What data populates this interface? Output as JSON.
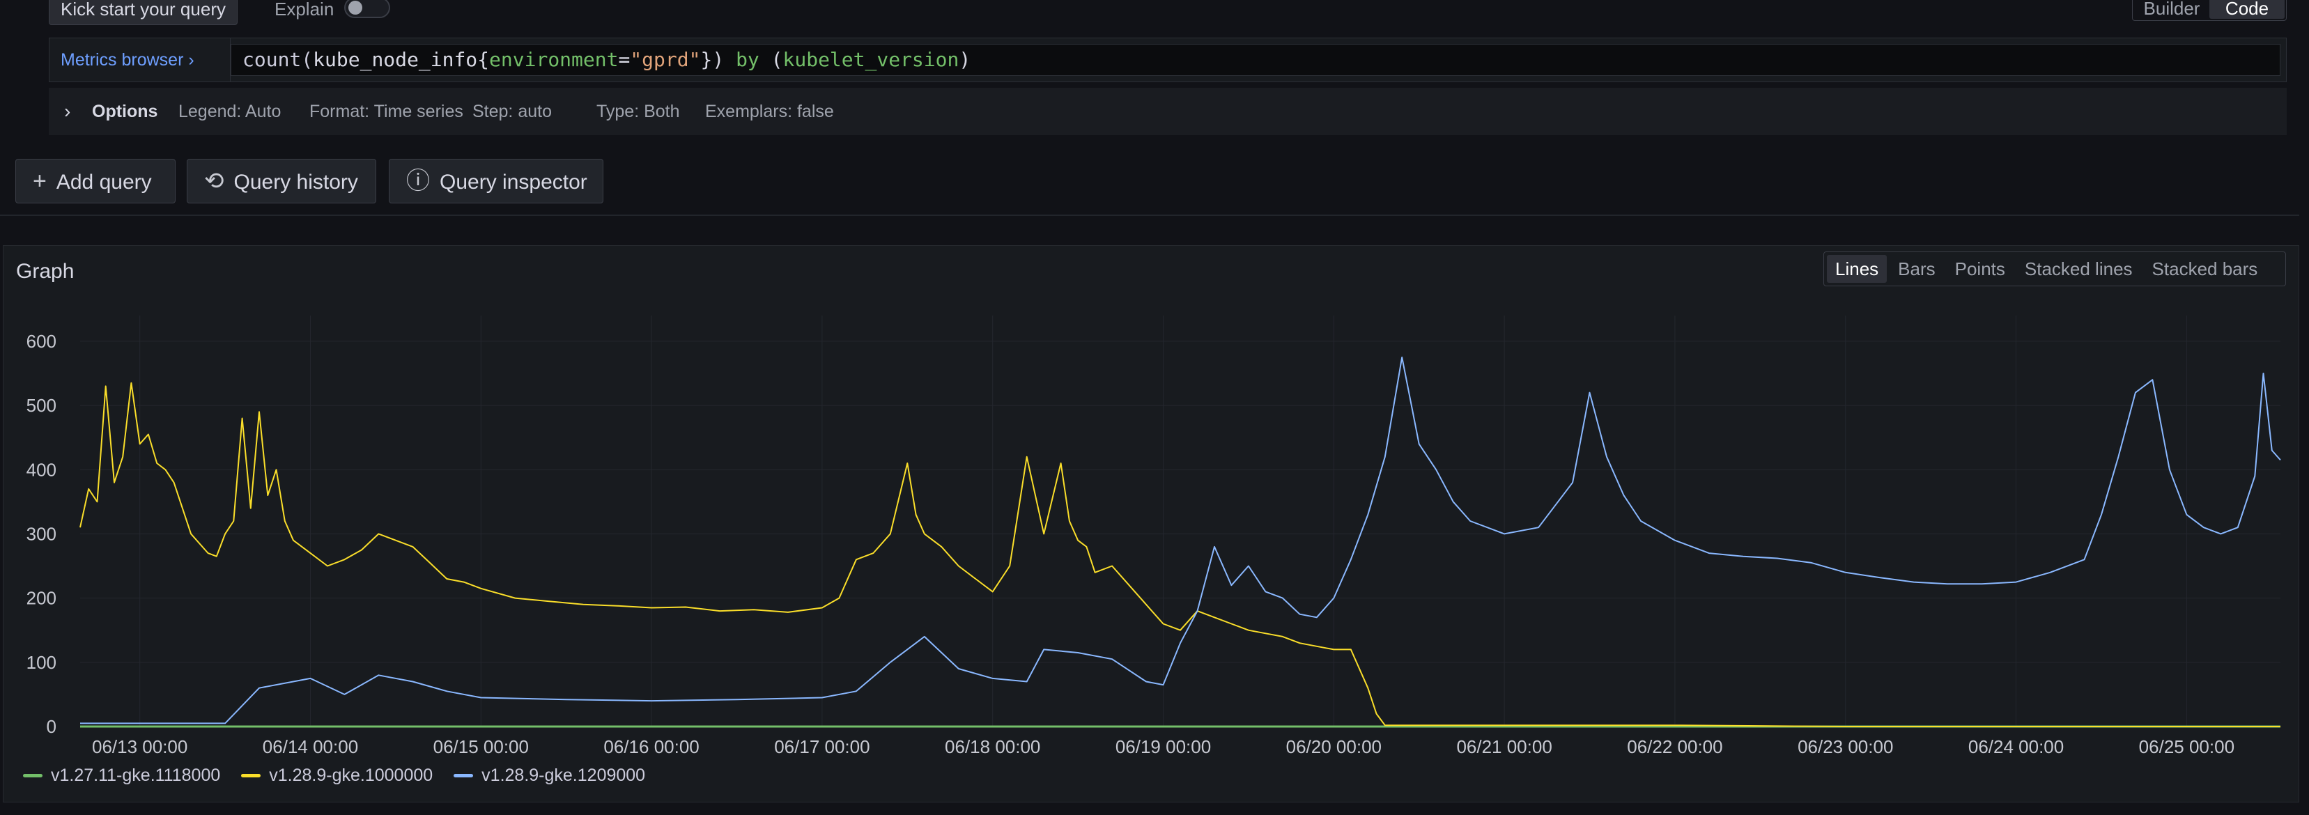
{
  "toolbar": {
    "kick_start_label": "Kick start your query",
    "explain_label": "Explain",
    "explain_on": false,
    "mode_builder": "Builder",
    "mode_code": "Code",
    "active_mode": "Code"
  },
  "query": {
    "metrics_browser_label": "Metrics browser",
    "metrics_browser_chevron": "›",
    "expr_fn": "count(",
    "expr_metric": "kube_node_info{",
    "expr_label": "environment",
    "expr_eq": "=",
    "expr_value": "\"gprd\"",
    "expr_close": "}) ",
    "expr_by": "by",
    "expr_paren_open": " (",
    "expr_grouping": "kubelet_version",
    "expr_paren_close": ")",
    "text": "count(kube_node_info{environment=\"gprd\"}) by (kubelet_version)"
  },
  "options": {
    "chevron": "›",
    "title": "Options",
    "legend": "Legend: Auto",
    "format": "Format: Time series",
    "step": "Step: auto",
    "type": "Type: Both",
    "exemplars": "Exemplars: false"
  },
  "actions": {
    "add_query": "Add query",
    "add_query_icon": "plus-icon",
    "query_history": "Query history",
    "query_history_icon": "history-icon",
    "query_inspector": "Query inspector",
    "query_inspector_icon": "info-circle-icon"
  },
  "graph": {
    "title": "Graph",
    "types": [
      "Lines",
      "Bars",
      "Points",
      "Stacked lines",
      "Stacked bars"
    ],
    "active_type": "Lines"
  },
  "chart_data": {
    "type": "line",
    "x_unit": "days",
    "x_ticks": [
      "06/13 00:00",
      "06/14 00:00",
      "06/15 00:00",
      "06/16 00:00",
      "06/17 00:00",
      "06/18 00:00",
      "06/19 00:00",
      "06/20 00:00",
      "06/21 00:00",
      "06/22 00:00",
      "06/23 00:00",
      "06/24 00:00",
      "06/25 00:00"
    ],
    "y_ticks": [
      0,
      100,
      200,
      300,
      400,
      500,
      600
    ],
    "ylim": [
      0,
      640
    ],
    "xlim": [
      12.65,
      25.55
    ],
    "grid": true,
    "legend_position": "bottom-left",
    "series": [
      {
        "name": "v1.27.11-gke.1118000",
        "color": "#73bf69",
        "x": [
          12.65,
          25.55
        ],
        "values": [
          0,
          0
        ]
      },
      {
        "name": "v1.28.9-gke.1000000",
        "color": "#fade2a",
        "x": [
          12.65,
          12.7,
          12.75,
          12.8,
          12.85,
          12.9,
          12.95,
          13.0,
          13.05,
          13.1,
          13.15,
          13.2,
          13.3,
          13.4,
          13.45,
          13.5,
          13.55,
          13.6,
          13.65,
          13.7,
          13.75,
          13.8,
          13.85,
          13.9,
          14.0,
          14.1,
          14.2,
          14.3,
          14.4,
          14.5,
          14.6,
          14.7,
          14.8,
          14.9,
          15.0,
          15.2,
          15.4,
          15.6,
          15.8,
          16.0,
          16.2,
          16.4,
          16.6,
          16.8,
          17.0,
          17.1,
          17.2,
          17.3,
          17.4,
          17.5,
          17.55,
          17.6,
          17.7,
          17.8,
          17.9,
          18.0,
          18.1,
          18.2,
          18.3,
          18.4,
          18.45,
          18.5,
          18.55,
          18.6,
          18.7,
          18.8,
          18.9,
          19.0,
          19.1,
          19.2,
          19.3,
          19.4,
          19.5,
          19.6,
          19.7,
          19.8,
          19.9,
          20.0,
          20.1,
          20.2,
          20.25,
          20.3,
          20.4,
          21.0,
          22.0,
          23.0,
          24.0,
          25.0,
          25.55
        ],
        "values": [
          310,
          370,
          350,
          530,
          380,
          420,
          535,
          440,
          455,
          410,
          400,
          380,
          300,
          270,
          265,
          300,
          320,
          480,
          340,
          490,
          360,
          400,
          320,
          290,
          270,
          250,
          260,
          275,
          300,
          290,
          280,
          255,
          230,
          225,
          215,
          200,
          195,
          190,
          188,
          185,
          186,
          180,
          182,
          178,
          185,
          200,
          260,
          270,
          300,
          410,
          330,
          300,
          280,
          250,
          230,
          210,
          250,
          420,
          300,
          410,
          320,
          290,
          280,
          240,
          250,
          220,
          190,
          160,
          150,
          180,
          170,
          160,
          150,
          145,
          140,
          130,
          125,
          120,
          120,
          60,
          20,
          2,
          2,
          2,
          2,
          0,
          0,
          0,
          0
        ]
      },
      {
        "name": "v1.28.9-gke.1209000",
        "color": "#8ab8ff",
        "x": [
          12.65,
          13.0,
          13.5,
          13.7,
          14.0,
          14.2,
          14.4,
          14.6,
          14.8,
          15.0,
          15.5,
          16.0,
          16.5,
          17.0,
          17.2,
          17.4,
          17.6,
          17.8,
          18.0,
          18.2,
          18.3,
          18.5,
          18.7,
          18.9,
          19.0,
          19.1,
          19.2,
          19.3,
          19.4,
          19.5,
          19.6,
          19.7,
          19.8,
          19.9,
          20.0,
          20.1,
          20.2,
          20.3,
          20.4,
          20.5,
          20.6,
          20.7,
          20.8,
          21.0,
          21.2,
          21.4,
          21.5,
          21.6,
          21.7,
          21.8,
          22.0,
          22.2,
          22.4,
          22.6,
          22.8,
          23.0,
          23.2,
          23.4,
          23.6,
          23.8,
          24.0,
          24.2,
          24.4,
          24.5,
          24.6,
          24.7,
          24.8,
          24.9,
          25.0,
          25.1,
          25.2,
          25.3,
          25.4,
          25.45,
          25.5,
          25.55
        ],
        "values": [
          5,
          5,
          5,
          60,
          75,
          50,
          80,
          70,
          55,
          45,
          42,
          40,
          42,
          45,
          55,
          100,
          140,
          90,
          75,
          70,
          120,
          115,
          105,
          70,
          65,
          130,
          180,
          280,
          220,
          250,
          210,
          200,
          175,
          170,
          200,
          260,
          330,
          420,
          575,
          440,
          400,
          350,
          320,
          300,
          310,
          380,
          520,
          420,
          360,
          320,
          290,
          270,
          265,
          262,
          255,
          240,
          232,
          225,
          222,
          222,
          225,
          240,
          260,
          330,
          420,
          520,
          540,
          400,
          330,
          310,
          300,
          310,
          390,
          550,
          430,
          415
        ]
      }
    ]
  }
}
